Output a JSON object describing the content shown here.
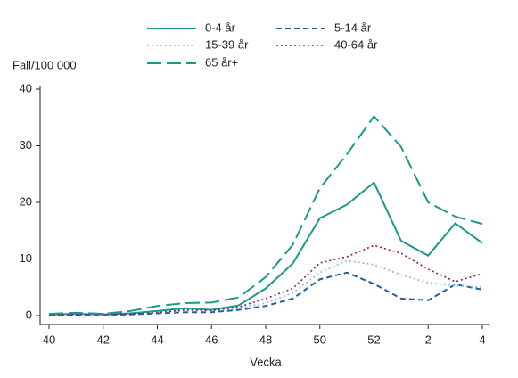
{
  "chart_data": {
    "type": "line",
    "y_label": "Fall/100 000",
    "x_label": "Vecka",
    "categories": [
      40,
      null,
      42,
      null,
      44,
      null,
      46,
      null,
      48,
      null,
      50,
      null,
      52,
      null,
      2,
      null,
      4
    ],
    "ylim": [
      0,
      40
    ],
    "yticks": [
      0,
      10,
      20,
      30,
      40
    ],
    "series": [
      {
        "name": "0-4 år",
        "color": "#1b998b",
        "style": "solid",
        "values": [
          0.2,
          0.3,
          0.2,
          0.4,
          0.8,
          1.3,
          1.0,
          1.8,
          4.8,
          9.2,
          17.2,
          19.6,
          23.5,
          13.2,
          10.6,
          16.3,
          12.8
        ]
      },
      {
        "name": "5-14 år",
        "color": "#1f5fa4",
        "style": "dashed",
        "values": [
          0,
          0.1,
          0.1,
          0.2,
          0.4,
          0.6,
          0.6,
          1.0,
          1.7,
          3.0,
          6.4,
          7.6,
          5.6,
          3.0,
          2.7,
          5.5,
          4.6
        ]
      },
      {
        "name": "15-39 år",
        "color": "#8fb8dc",
        "style": "dotted",
        "values": [
          0.1,
          0.2,
          0.1,
          0.3,
          0.5,
          0.8,
          0.9,
          1.3,
          2.2,
          4.0,
          7.6,
          9.7,
          9.0,
          7.2,
          5.8,
          5.3,
          5.0
        ]
      },
      {
        "name": "40-64 år",
        "color": "#8e1c6c",
        "style": "dotted",
        "values": [
          0.1,
          0.2,
          0.2,
          0.3,
          0.5,
          1.0,
          0.9,
          1.5,
          3.0,
          4.8,
          9.3,
          10.4,
          12.4,
          11.0,
          8.2,
          6.0,
          7.4
        ]
      },
      {
        "name": "65 år+",
        "color": "#1b998b",
        "style": "longdash",
        "values": [
          0.3,
          0.5,
          0.3,
          0.8,
          1.7,
          2.2,
          2.3,
          3.2,
          6.8,
          12.5,
          22.5,
          28.5,
          35.2,
          29.8,
          20.0,
          17.5,
          16.2
        ]
      }
    ]
  }
}
